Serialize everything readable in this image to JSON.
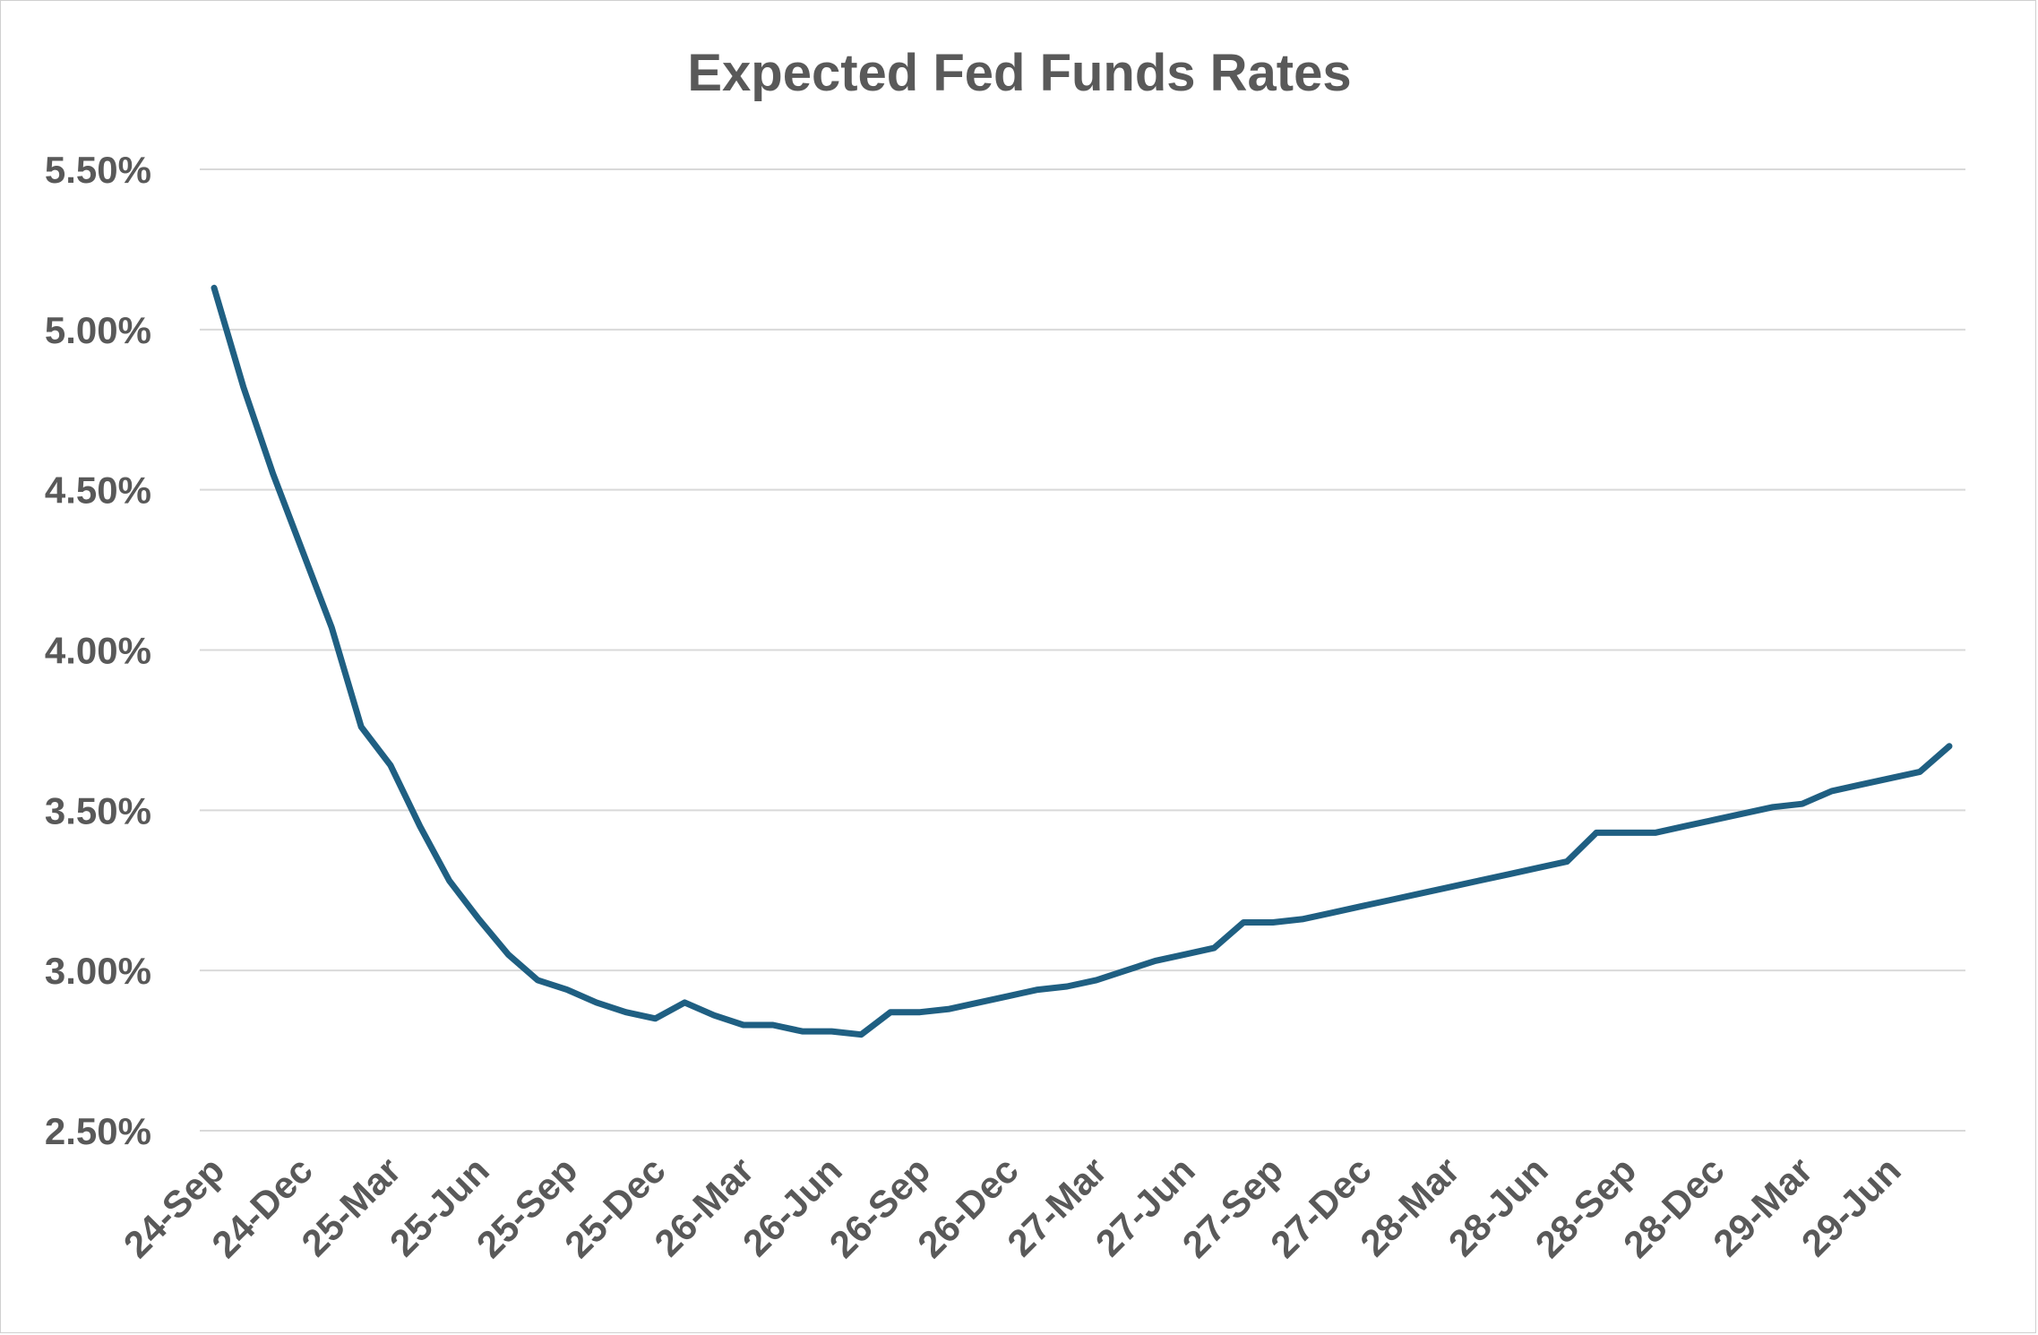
{
  "chart_data": {
    "type": "line",
    "title": "Expected Fed Funds Rates",
    "xlabel": "",
    "ylabel": "",
    "ylim": [
      2.5,
      5.5
    ],
    "yticks": [
      "2.50%",
      "3.00%",
      "3.50%",
      "4.00%",
      "4.50%",
      "5.00%",
      "5.50%"
    ],
    "ytick_values": [
      2.5,
      3.0,
      3.5,
      4.0,
      4.5,
      5.0,
      5.5
    ],
    "xtick_labels": [
      "24-Sep",
      "24-Dec",
      "25-Mar",
      "25-Jun",
      "25-Sep",
      "25-Dec",
      "26-Mar",
      "26-Jun",
      "26-Sep",
      "26-Dec",
      "27-Mar",
      "27-Jun",
      "27-Sep",
      "27-Dec",
      "28-Mar",
      "28-Jun",
      "28-Sep",
      "28-Dec",
      "29-Mar",
      "29-Jun"
    ],
    "xtick_every": 3,
    "grid": true,
    "legend": "none",
    "line_color": "#1f5f82",
    "series": [
      {
        "values": [
          5.13,
          4.82,
          4.55,
          4.31,
          4.07,
          3.76,
          3.64,
          3.45,
          3.28,
          3.16,
          3.05,
          2.97,
          2.94,
          2.9,
          2.87,
          2.85,
          2.9,
          2.86,
          2.83,
          2.83,
          2.81,
          2.81,
          2.8,
          2.87,
          2.87,
          2.88,
          2.9,
          2.92,
          2.94,
          2.95,
          2.97,
          3.0,
          3.03,
          3.05,
          3.07,
          3.15,
          3.15,
          3.16,
          3.18,
          3.2,
          3.22,
          3.24,
          3.26,
          3.28,
          3.3,
          3.32,
          3.34,
          3.43,
          3.43,
          3.43,
          3.45,
          3.47,
          3.49,
          3.51,
          3.52,
          3.56,
          3.58,
          3.6,
          3.62,
          3.7
        ]
      }
    ]
  }
}
